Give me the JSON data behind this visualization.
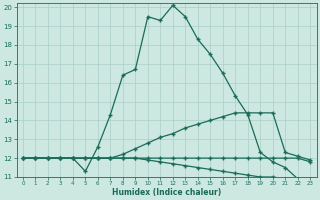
{
  "xlabel": "Humidex (Indice chaleur)",
  "xlim": [
    -0.5,
    23.5
  ],
  "ylim": [
    11,
    20.2
  ],
  "yticks": [
    11,
    12,
    13,
    14,
    15,
    16,
    17,
    18,
    19,
    20
  ],
  "xticks": [
    0,
    1,
    2,
    3,
    4,
    5,
    6,
    7,
    8,
    9,
    10,
    11,
    12,
    13,
    14,
    15,
    16,
    17,
    18,
    19,
    20,
    21,
    22,
    23
  ],
  "bg_color": "#cce8e0",
  "line_color": "#1a6b5a",
  "grid_color": "#aacfc8",
  "lines": [
    {
      "x": [
        0,
        1,
        2,
        3,
        4,
        5,
        6,
        7,
        8,
        9,
        10,
        11,
        12,
        13,
        14,
        15,
        16,
        17,
        18,
        19,
        20,
        21,
        22,
        23
      ],
      "y": [
        12,
        12,
        12,
        12,
        12,
        11.3,
        12.6,
        14.3,
        16.4,
        16.7,
        19.5,
        19.3,
        20.1,
        19.5,
        18.3,
        17.5,
        16.5,
        15.3,
        14.3,
        12.3,
        11.8,
        11.5,
        10.9,
        10.9
      ]
    },
    {
      "x": [
        0,
        1,
        2,
        3,
        4,
        5,
        6,
        7,
        8,
        9,
        10,
        11,
        12,
        13,
        14,
        15,
        16,
        17,
        18,
        19,
        20,
        21,
        22,
        23
      ],
      "y": [
        12,
        12,
        12,
        12,
        12,
        12,
        12,
        12,
        12.2,
        12.5,
        12.8,
        13.1,
        13.3,
        13.6,
        13.8,
        14.0,
        14.2,
        14.4,
        14.4,
        14.4,
        14.4,
        12.3,
        12.1,
        11.9
      ]
    },
    {
      "x": [
        0,
        1,
        2,
        3,
        4,
        5,
        6,
        7,
        8,
        9,
        10,
        11,
        12,
        13,
        14,
        15,
        16,
        17,
        18,
        19,
        20,
        21,
        22,
        23
      ],
      "y": [
        12,
        12,
        12,
        12,
        12,
        12,
        12,
        12,
        12,
        12,
        12,
        12,
        12,
        12,
        12,
        12,
        12,
        12,
        12,
        12,
        12,
        12,
        12,
        11.8
      ]
    },
    {
      "x": [
        0,
        1,
        2,
        3,
        4,
        5,
        6,
        7,
        8,
        9,
        10,
        11,
        12,
        13,
        14,
        15,
        16,
        17,
        18,
        19,
        20,
        21,
        22,
        23
      ],
      "y": [
        12,
        12,
        12,
        12,
        12,
        12,
        12,
        12,
        12,
        12,
        11.9,
        11.8,
        11.7,
        11.6,
        11.5,
        11.4,
        11.3,
        11.2,
        11.1,
        11.0,
        11.0,
        10.9,
        10.9,
        10.85
      ]
    }
  ]
}
